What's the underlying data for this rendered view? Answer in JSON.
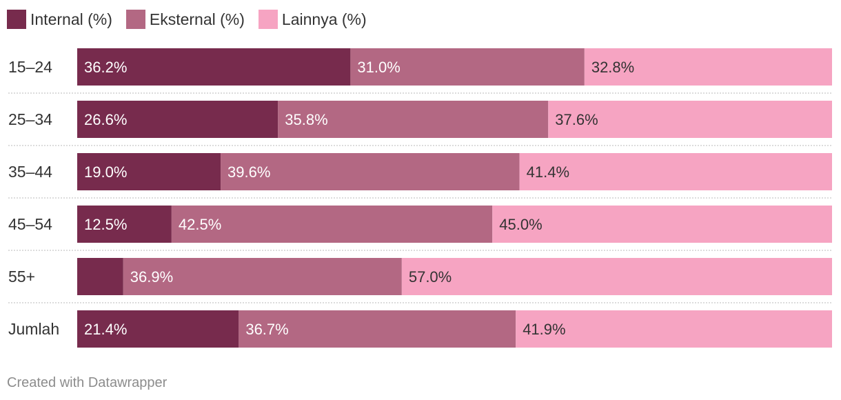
{
  "legend": [
    {
      "label": "Internal (%)",
      "color": "#772b4d"
    },
    {
      "label": "Eksternal (%)",
      "color": "#b36883"
    },
    {
      "label": "Lainnya (%)",
      "color": "#f6a4c2"
    }
  ],
  "footer": {
    "credit": "Created with Datawrapper"
  },
  "chart_data": {
    "type": "bar",
    "orientation": "horizontal",
    "stacked": true,
    "categories": [
      "15–24",
      "25–34",
      "35–44",
      "45–54",
      "55+",
      "Jumlah"
    ],
    "series": [
      {
        "name": "Internal (%)",
        "color": "#772b4d",
        "values": [
          36.2,
          26.6,
          19.0,
          12.5,
          6.1,
          21.4
        ],
        "labels": [
          "36.2%",
          "26.6%",
          "19.0%",
          "12.5%",
          "",
          "21.4%"
        ],
        "label_color": "#ffffff"
      },
      {
        "name": "Eksternal (%)",
        "color": "#b36883",
        "values": [
          31.0,
          35.8,
          39.6,
          42.5,
          36.9,
          36.7
        ],
        "labels": [
          "31.0%",
          "35.8%",
          "39.6%",
          "42.5%",
          "36.9%",
          "36.7%"
        ],
        "label_color": "#ffffff"
      },
      {
        "name": "Lainnya (%)",
        "color": "#f6a4c2",
        "values": [
          32.8,
          37.6,
          41.4,
          45.0,
          57.0,
          41.9
        ],
        "labels": [
          "32.8%",
          "37.6%",
          "41.4%",
          "45.0%",
          "57.0%",
          "41.9%"
        ],
        "label_color": "#333333"
      }
    ],
    "xlim": [
      0,
      100
    ],
    "grid": false,
    "legend_position": "top-left"
  }
}
